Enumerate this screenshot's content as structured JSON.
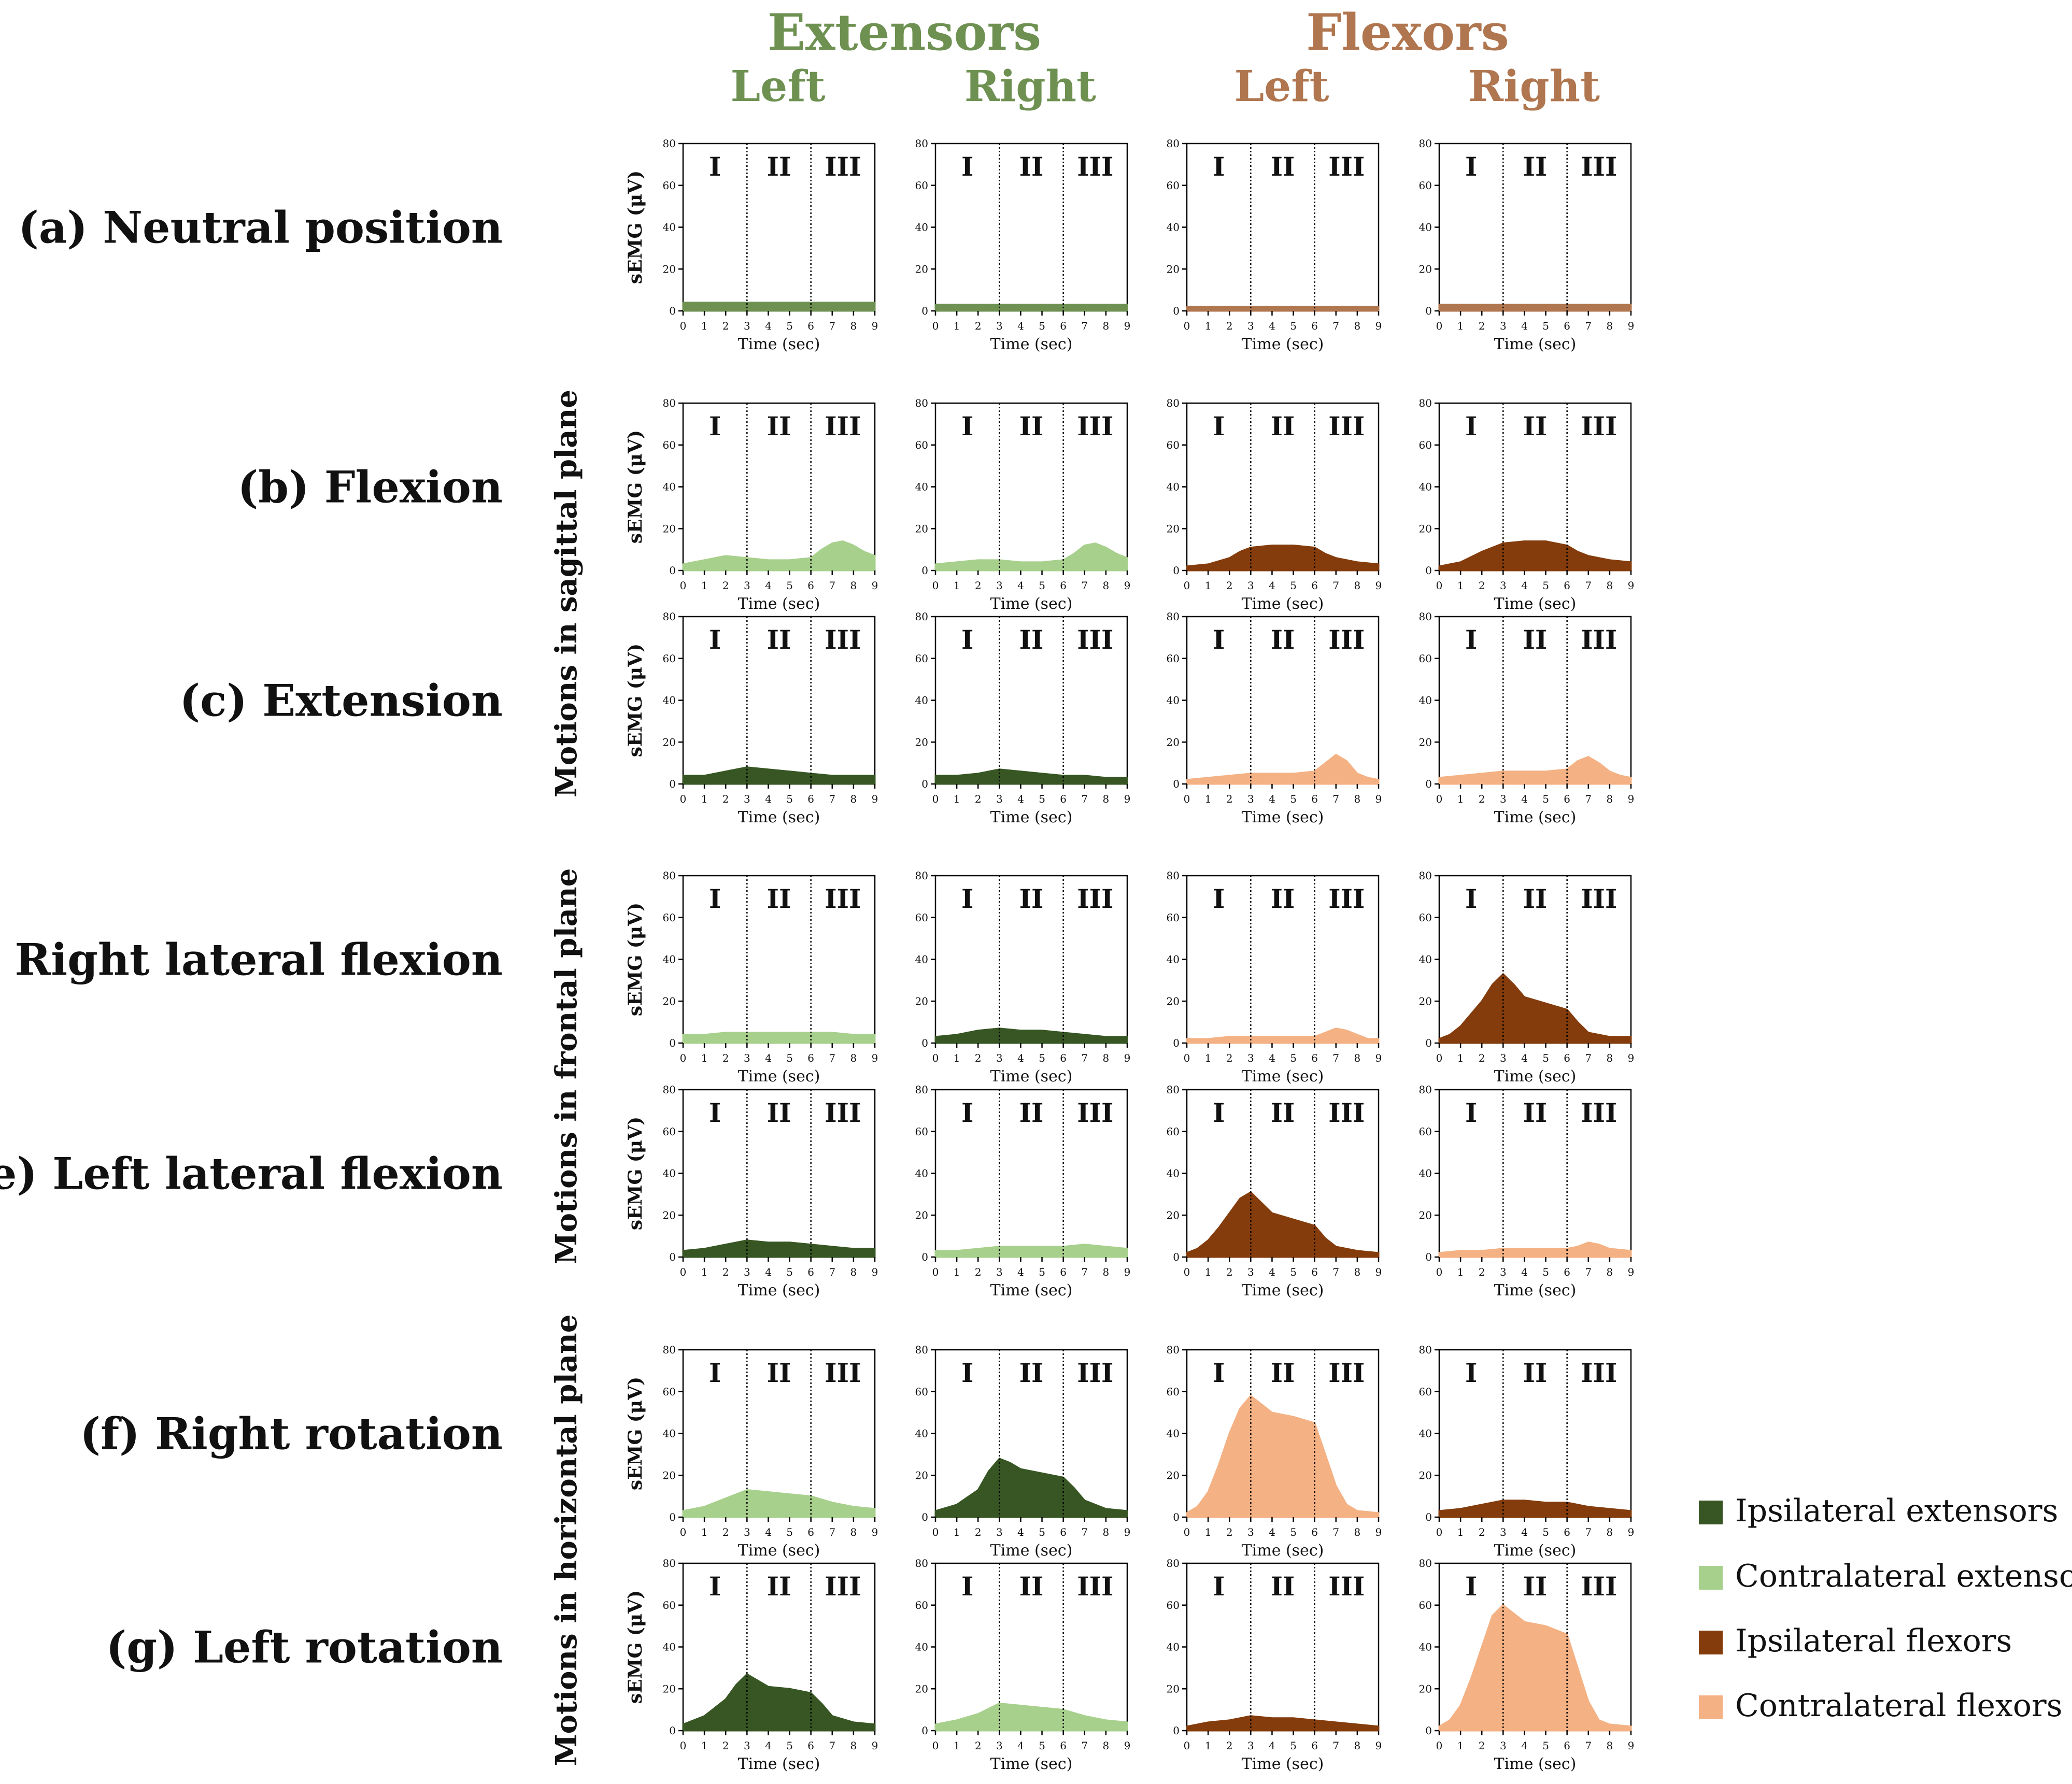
{
  "headers": {
    "extensors": {
      "label": "Extensors",
      "color": "#6E9152"
    },
    "flexors": {
      "label": "Flexors",
      "color": "#B0764F"
    },
    "sides": [
      {
        "label": "Left",
        "group": "extensors"
      },
      {
        "label": "Right",
        "group": "extensors"
      },
      {
        "label": "Left",
        "group": "flexors"
      },
      {
        "label": "Right",
        "group": "flexors"
      }
    ]
  },
  "plane_labels": [
    {
      "label": "Motions in sagittal plane",
      "rows": [
        1,
        2
      ]
    },
    {
      "label": "Motions in frontal plane",
      "rows": [
        3,
        4
      ]
    },
    {
      "label": "Motions in horizontal plane",
      "rows": [
        5,
        6
      ]
    }
  ],
  "legend": [
    {
      "label": "Ipsilateral extensors",
      "color": "#375623"
    },
    {
      "label": "Contralateral extensors",
      "color": "#A8D08D"
    },
    {
      "label": "Ipsilateral flexors",
      "color": "#843C0C"
    },
    {
      "label": "Contralateral flexors",
      "color": "#F4B183"
    }
  ],
  "chart_data": {
    "type": "area",
    "ylabel": "sEMG (μV)",
    "xlabel": "Time (sec)",
    "ylim": [
      0,
      80
    ],
    "yticks": [
      "0",
      "20",
      "40",
      "60",
      "80"
    ],
    "xlim": [
      0,
      9
    ],
    "xticks": [
      "0",
      "1",
      "2",
      "3",
      "4",
      "5",
      "6",
      "7",
      "8",
      "9"
    ],
    "phase_boundaries": [
      3,
      6
    ],
    "phases": [
      "I",
      "II",
      "III"
    ],
    "columns": [
      "Extensors Left",
      "Extensors Right",
      "Flexors Left",
      "Flexors Right"
    ],
    "colors": {
      "neutral_ext": "#6E9152",
      "neutral_flex": "#B0764F",
      "ipsi_ext": "#375623",
      "contra_ext": "#A8D08D",
      "ipsi_flex": "#843C0C",
      "contra_flex": "#F4B183"
    },
    "rows": [
      {
        "label": "(a) Neutral position",
        "panels": [
          {
            "series": "neutral_ext",
            "x": [
              0,
              9
            ],
            "y": [
              4,
              4
            ]
          },
          {
            "series": "neutral_ext",
            "x": [
              0,
              9
            ],
            "y": [
              3,
              3
            ]
          },
          {
            "series": "neutral_flex",
            "x": [
              0,
              9
            ],
            "y": [
              2,
              2
            ]
          },
          {
            "series": "neutral_flex",
            "x": [
              0,
              9
            ],
            "y": [
              3,
              3
            ]
          }
        ]
      },
      {
        "label": "(b) Flexion",
        "panels": [
          {
            "series": "contra_ext",
            "x": [
              0,
              1,
              2,
              3,
              4,
              5,
              6,
              6.5,
              7,
              7.5,
              8,
              8.5,
              9
            ],
            "y": [
              3,
              5,
              7,
              6,
              5,
              5,
              6,
              10,
              13,
              14,
              12,
              9,
              7
            ]
          },
          {
            "series": "contra_ext",
            "x": [
              0,
              1,
              2,
              3,
              4,
              5,
              6,
              6.5,
              7,
              7.5,
              8,
              8.5,
              9
            ],
            "y": [
              3,
              4,
              5,
              5,
              4,
              4,
              5,
              8,
              12,
              13,
              11,
              8,
              6
            ]
          },
          {
            "series": "ipsi_flex",
            "x": [
              0,
              1,
              2,
              2.5,
              3,
              4,
              5,
              6,
              6.5,
              7,
              8,
              9
            ],
            "y": [
              2,
              3,
              6,
              9,
              11,
              12,
              12,
              11,
              8,
              6,
              4,
              3
            ]
          },
          {
            "series": "ipsi_flex",
            "x": [
              0,
              1,
              2,
              3,
              4,
              5,
              6,
              6.5,
              7,
              8,
              9
            ],
            "y": [
              2,
              4,
              9,
              13,
              14,
              14,
              12,
              9,
              7,
              5,
              4
            ]
          }
        ]
      },
      {
        "label": "(c) Extension",
        "panels": [
          {
            "series": "ipsi_ext",
            "x": [
              0,
              1,
              2,
              3,
              4,
              5,
              6,
              7,
              8,
              9
            ],
            "y": [
              4,
              4,
              6,
              8,
              7,
              6,
              5,
              4,
              4,
              4
            ]
          },
          {
            "series": "ipsi_ext",
            "x": [
              0,
              1,
              2,
              3,
              4,
              5,
              6,
              7,
              8,
              9
            ],
            "y": [
              4,
              4,
              5,
              7,
              6,
              5,
              4,
              4,
              3,
              3
            ]
          },
          {
            "series": "contra_flex",
            "x": [
              0,
              1,
              2,
              3,
              4,
              5,
              6,
              6.5,
              7,
              7.5,
              8,
              8.5,
              9
            ],
            "y": [
              2,
              3,
              4,
              5,
              5,
              5,
              6,
              10,
              14,
              11,
              5,
              3,
              2
            ]
          },
          {
            "series": "contra_flex",
            "x": [
              0,
              1,
              2,
              3,
              4,
              5,
              6,
              6.5,
              7,
              7.5,
              8,
              8.5,
              9
            ],
            "y": [
              3,
              4,
              5,
              6,
              6,
              6,
              7,
              11,
              13,
              10,
              6,
              4,
              3
            ]
          }
        ]
      },
      {
        "label": "(d) Right lateral flexion",
        "panels": [
          {
            "series": "contra_ext",
            "x": [
              0,
              1,
              2,
              3,
              4,
              5,
              6,
              7,
              8,
              9
            ],
            "y": [
              4,
              4,
              5,
              5,
              5,
              5,
              5,
              5,
              4,
              4
            ]
          },
          {
            "series": "ipsi_ext",
            "x": [
              0,
              1,
              2,
              3,
              4,
              5,
              6,
              7,
              8,
              9
            ],
            "y": [
              3,
              4,
              6,
              7,
              6,
              6,
              5,
              4,
              3,
              3
            ]
          },
          {
            "series": "contra_flex",
            "x": [
              0,
              1,
              2,
              3,
              4,
              5,
              6,
              6.5,
              7,
              7.5,
              8,
              8.5,
              9
            ],
            "y": [
              2,
              2,
              3,
              3,
              3,
              3,
              3,
              5,
              7,
              6,
              4,
              2,
              2
            ]
          },
          {
            "series": "ipsi_flex",
            "x": [
              0,
              0.5,
              1,
              1.5,
              2,
              2.5,
              3,
              3.5,
              4,
              5,
              6,
              6.5,
              7,
              8,
              9
            ],
            "y": [
              2,
              4,
              8,
              14,
              20,
              28,
              33,
              28,
              22,
              19,
              16,
              10,
              5,
              3,
              3
            ]
          }
        ]
      },
      {
        "label": "(e) Left lateral flexion",
        "panels": [
          {
            "series": "ipsi_ext",
            "x": [
              0,
              1,
              2,
              3,
              4,
              5,
              6,
              7,
              8,
              9
            ],
            "y": [
              3,
              4,
              6,
              8,
              7,
              7,
              6,
              5,
              4,
              4
            ]
          },
          {
            "series": "contra_ext",
            "x": [
              0,
              1,
              2,
              3,
              4,
              5,
              6,
              7,
              8,
              9
            ],
            "y": [
              3,
              3,
              4,
              5,
              5,
              5,
              5,
              6,
              5,
              4
            ]
          },
          {
            "series": "ipsi_flex",
            "x": [
              0,
              0.5,
              1,
              1.5,
              2,
              2.5,
              3,
              3.5,
              4,
              5,
              6,
              6.5,
              7,
              8,
              9
            ],
            "y": [
              2,
              4,
              8,
              14,
              21,
              28,
              31,
              26,
              21,
              18,
              15,
              9,
              5,
              3,
              2
            ]
          },
          {
            "series": "contra_flex",
            "x": [
              0,
              1,
              2,
              3,
              4,
              5,
              6,
              6.5,
              7,
              7.5,
              8,
              9
            ],
            "y": [
              2,
              3,
              3,
              4,
              4,
              4,
              4,
              5,
              7,
              6,
              4,
              3
            ]
          }
        ]
      },
      {
        "label": "(f) Right rotation",
        "panels": [
          {
            "series": "contra_ext",
            "x": [
              0,
              1,
              2,
              3,
              4,
              5,
              6,
              7,
              8,
              9
            ],
            "y": [
              3,
              5,
              9,
              13,
              12,
              11,
              10,
              7,
              5,
              4
            ]
          },
          {
            "series": "ipsi_ext",
            "x": [
              0,
              1,
              2,
              2.5,
              3,
              3.5,
              4,
              5,
              6,
              6.5,
              7,
              8,
              9
            ],
            "y": [
              3,
              6,
              13,
              22,
              28,
              26,
              23,
              21,
              19,
              14,
              8,
              4,
              3
            ]
          },
          {
            "series": "contra_flex",
            "x": [
              0,
              0.5,
              1,
              1.5,
              2,
              2.5,
              3,
              3.5,
              4,
              5,
              6,
              6.5,
              7,
              7.5,
              8,
              9
            ],
            "y": [
              2,
              5,
              12,
              25,
              40,
              52,
              58,
              54,
              50,
              48,
              45,
              30,
              15,
              6,
              3,
              2
            ]
          },
          {
            "series": "ipsi_flex",
            "x": [
              0,
              1,
              2,
              3,
              4,
              5,
              6,
              7,
              8,
              9
            ],
            "y": [
              3,
              4,
              6,
              8,
              8,
              7,
              7,
              5,
              4,
              3
            ]
          }
        ]
      },
      {
        "label": "(g) Left rotation",
        "panels": [
          {
            "series": "ipsi_ext",
            "x": [
              0,
              1,
              2,
              2.5,
              3,
              3.5,
              4,
              5,
              6,
              6.5,
              7,
              8,
              9
            ],
            "y": [
              3,
              7,
              15,
              22,
              27,
              24,
              21,
              20,
              18,
              13,
              7,
              4,
              3
            ]
          },
          {
            "series": "contra_ext",
            "x": [
              0,
              1,
              2,
              3,
              4,
              5,
              6,
              7,
              8,
              9
            ],
            "y": [
              3,
              5,
              8,
              13,
              12,
              11,
              10,
              7,
              5,
              4
            ]
          },
          {
            "series": "ipsi_flex",
            "x": [
              0,
              1,
              2,
              3,
              4,
              5,
              6,
              7,
              8,
              9
            ],
            "y": [
              2,
              4,
              5,
              7,
              6,
              6,
              5,
              4,
              3,
              2
            ]
          },
          {
            "series": "contra_flex",
            "x": [
              0,
              0.5,
              1,
              1.5,
              2,
              2.5,
              3,
              3.5,
              4,
              5,
              6,
              6.5,
              7,
              7.5,
              8,
              9
            ],
            "y": [
              2,
              5,
              12,
              25,
              40,
              55,
              60,
              56,
              52,
              50,
              46,
              30,
              14,
              5,
              3,
              2
            ]
          }
        ]
      }
    ]
  }
}
